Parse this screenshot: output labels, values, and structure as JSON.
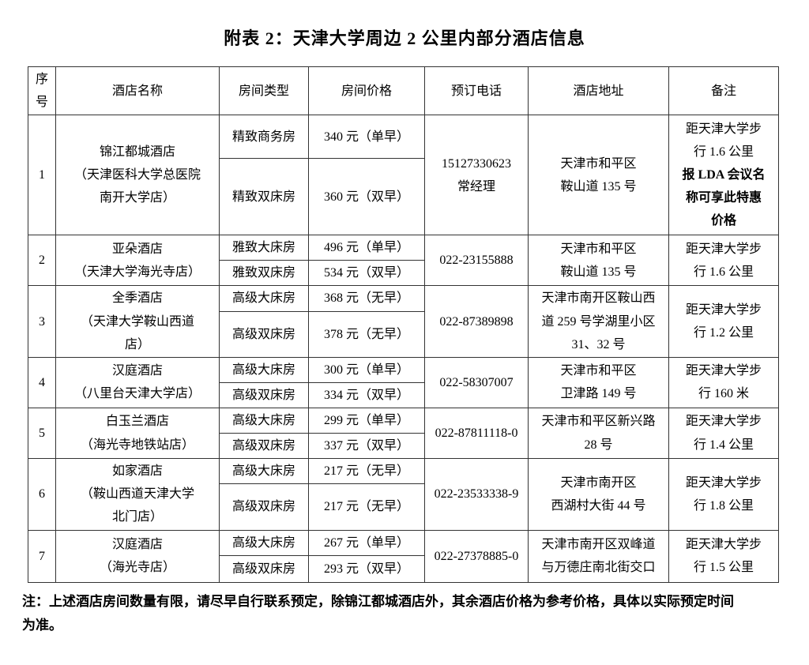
{
  "title": "附表 2：天津大学周边 2 公里内部分酒店信息",
  "colors": {
    "background": "#ffffff",
    "text": "#000000",
    "border": "#333333"
  },
  "table": {
    "headers": [
      "序号",
      "酒店名称",
      "房间类型",
      "房间价格",
      "预订电话",
      "酒店地址",
      "备注"
    ],
    "rows": [
      {
        "no": "1",
        "name": "锦江都城酒店\n（天津医科大学总医院\n南开大学店）",
        "rooms": [
          {
            "type": "精致商务房",
            "price": "340 元（单早）"
          },
          {
            "type": "精致双床房",
            "price": "360 元（双早）"
          }
        ],
        "phone": "15127330623\n常经理",
        "address": "天津市和平区\n鞍山道 135 号",
        "remark": "距天津大学步\n行 1.6 公里",
        "remark_bold": "报 LDA 会议名\n称可享此特惠\n价格"
      },
      {
        "no": "2",
        "name": "亚朵酒店\n（天津大学海光寺店）",
        "rooms": [
          {
            "type": "雅致大床房",
            "price": "496 元（单早）"
          },
          {
            "type": "雅致双床房",
            "price": "534 元（双早）"
          }
        ],
        "phone": "022-23155888",
        "address": "天津市和平区\n鞍山道 135 号",
        "remark": "距天津大学步\n行 1.6 公里"
      },
      {
        "no": "3",
        "name": "全季酒店\n（天津大学鞍山西道\n店）",
        "rooms": [
          {
            "type": "高级大床房",
            "price": "368 元（无早）"
          },
          {
            "type": "高级双床房",
            "price": "378 元（无早）"
          }
        ],
        "phone": "022-87389898",
        "address": "天津市南开区鞍山西\n道 259 号学湖里小区\n31、32 号",
        "remark": "距天津大学步\n行 1.2 公里"
      },
      {
        "no": "4",
        "name": "汉庭酒店\n（八里台天津大学店）",
        "rooms": [
          {
            "type": "高级大床房",
            "price": "300 元（单早）"
          },
          {
            "type": "高级双床房",
            "price": "334 元（双早）"
          }
        ],
        "phone": "022-58307007",
        "address": "天津市和平区\n卫津路 149 号",
        "remark": "距天津大学步\n行 160 米"
      },
      {
        "no": "5",
        "name": "白玉兰酒店\n（海光寺地铁站店）",
        "rooms": [
          {
            "type": "高级大床房",
            "price": "299 元（单早）"
          },
          {
            "type": "高级双床房",
            "price": "337 元（双早）"
          }
        ],
        "phone": "022-87811118-0",
        "address": "天津市和平区新兴路\n28 号",
        "remark": "距天津大学步\n行 1.4 公里"
      },
      {
        "no": "6",
        "name": "如家酒店\n（鞍山西道天津大学\n北门店）",
        "rooms": [
          {
            "type": "高级大床房",
            "price": "217 元（无早）"
          },
          {
            "type": "高级双床房",
            "price": "217 元（无早）"
          }
        ],
        "phone": "022-23533338-9",
        "address": "天津市南开区\n西湖村大街 44 号",
        "remark": "距天津大学步\n行 1.8 公里"
      },
      {
        "no": "7",
        "name": "汉庭酒店\n（海光寺店）",
        "rooms": [
          {
            "type": "高级大床房",
            "price": "267 元（单早）"
          },
          {
            "type": "高级双床房",
            "price": "293 元（双早）"
          }
        ],
        "phone": "022-27378885-0",
        "address": "天津市南开区双峰道\n与万德庄南北街交口",
        "remark": "距天津大学步\n行 1.5 公里"
      }
    ]
  },
  "footnote": "注：上述酒店房间数量有限，请尽早自行联系预定，除锦江都城酒店外，其余酒店价格为参考价格，具体以实际预定时间\n为准。"
}
